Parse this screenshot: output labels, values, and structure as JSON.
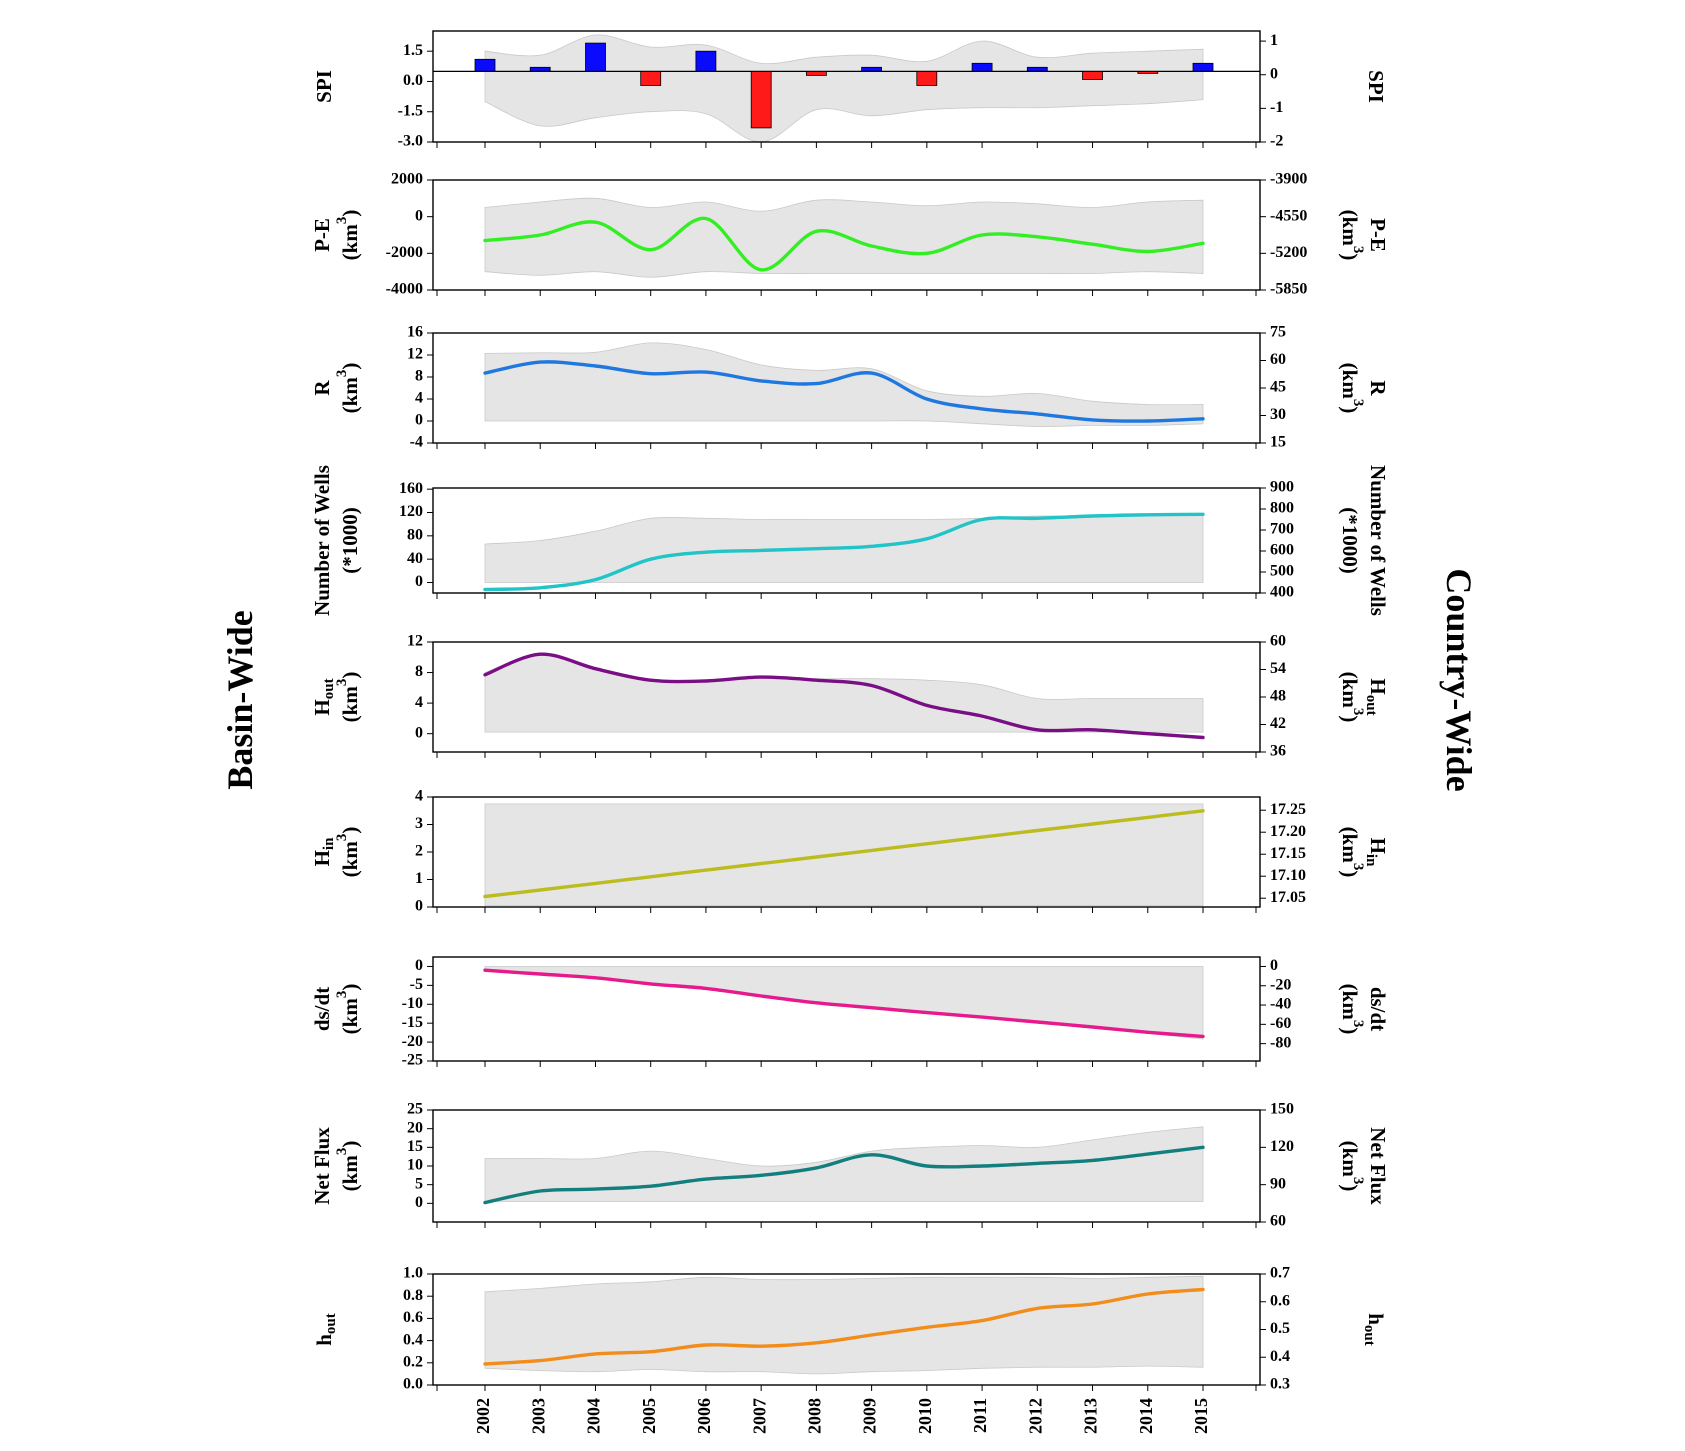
{
  "labels": {
    "left": "Basin-Wide",
    "right": "Country-Wide"
  },
  "years": [
    "2002",
    "2003",
    "2004",
    "2005",
    "2006",
    "2007",
    "2008",
    "2009",
    "2010",
    "2011",
    "2012",
    "2013",
    "2014",
    "2015"
  ],
  "chart_data": [
    {
      "type": "bar",
      "id": "spi",
      "label_left": "SPI",
      "label_right": "SPI",
      "ylim": [
        -3,
        2.5
      ],
      "yticks": [
        -3.0,
        -1.5,
        0.0,
        1.5
      ],
      "ytick_labels": [
        "-3.0",
        "-1.5",
        "0.0",
        "1.5"
      ],
      "ylim_right": [
        -2,
        1.3
      ],
      "yticks_right": [
        -2,
        -1,
        0,
        1
      ],
      "ytick_labels_right": [
        "-2",
        "-1",
        "0",
        "1"
      ],
      "baseline": 0.5,
      "x": [
        "2002",
        "2003",
        "2004",
        "2005",
        "2006",
        "2007",
        "2008",
        "2009",
        "2010",
        "2011",
        "2012",
        "2013",
        "2014",
        "2015"
      ],
      "values": [
        1.1,
        0.7,
        1.9,
        -0.2,
        1.5,
        -2.3,
        0.3,
        0.7,
        -0.2,
        0.9,
        0.7,
        0.1,
        0.4,
        0.9
      ],
      "bar_colors": [
        "#0a0aff",
        "#0a0aff",
        "#0a0aff",
        "#ff1a1a",
        "#0a0aff",
        "#ff1a1a",
        "#ff1a1a",
        "#0a0aff",
        "#ff1a1a",
        "#0a0aff",
        "#0a0aff",
        "#ff1a1a",
        "#ff1a1a",
        "#0a0aff"
      ],
      "band_upper": [
        1.5,
        1.3,
        2.3,
        1.7,
        1.8,
        0.9,
        1.2,
        1.3,
        1.0,
        2.0,
        1.2,
        1.4,
        1.5,
        1.6
      ],
      "band_lower": [
        -1.0,
        -2.2,
        -1.8,
        -1.5,
        -1.6,
        -3.0,
        -1.4,
        -1.7,
        -1.4,
        -1.3,
        -1.3,
        -1.2,
        -1.1,
        -0.9
      ]
    },
    {
      "type": "line",
      "id": "pe",
      "label_left": "P-E",
      "label_right": "P-E",
      "unit": "(km3)",
      "unit_base": "(km",
      "unit_exp": "3",
      "unit_close": ")",
      "color": "#33ee22",
      "ylim": [
        -4000,
        2000
      ],
      "yticks": [
        -4000,
        -2000,
        0,
        2000
      ],
      "ytick_labels": [
        "-4000",
        "-2000",
        "0",
        "2000"
      ],
      "ylim_right": [
        -5850,
        -3900
      ],
      "yticks_right": [
        -5850,
        -5200,
        -4550,
        -3900
      ],
      "ytick_labels_right": [
        "-5850",
        "-5200",
        "-4550",
        "-3900"
      ],
      "x": [
        "2002",
        "2003",
        "2004",
        "2005",
        "2006",
        "2007",
        "2008",
        "2009",
        "2010",
        "2011",
        "2012",
        "2013",
        "2014",
        "2015"
      ],
      "values": [
        -1300,
        -1000,
        -300,
        -1800,
        -100,
        -2900,
        -800,
        -1600,
        -2000,
        -1000,
        -1100,
        -1500,
        -1900,
        -1450
      ],
      "band_upper": [
        500,
        800,
        1000,
        500,
        800,
        300,
        900,
        800,
        600,
        800,
        700,
        500,
        800,
        900
      ],
      "band_lower": [
        -3000,
        -3200,
        -3000,
        -3300,
        -3000,
        -3100,
        -3100,
        -3100,
        -3100,
        -3100,
        -3100,
        -3100,
        -3000,
        -3100
      ]
    },
    {
      "type": "line",
      "id": "r",
      "label_left": "R",
      "label_right": "R",
      "unit": "(km3)",
      "unit_base": "(km",
      "unit_exp": "3",
      "unit_close": ")",
      "color": "#1f78e0",
      "ylim": [
        -4,
        16
      ],
      "yticks": [
        -4,
        0,
        4,
        8,
        12,
        16
      ],
      "ytick_labels": [
        "-4",
        "0",
        "4",
        "8",
        "12",
        "16"
      ],
      "ylim_right": [
        15,
        75
      ],
      "yticks_right": [
        15,
        30,
        45,
        60,
        75
      ],
      "ytick_labels_right": [
        "15",
        "30",
        "45",
        "60",
        "75"
      ],
      "x": [
        "2002",
        "2003",
        "2004",
        "2005",
        "2006",
        "2007",
        "2008",
        "2009",
        "2010",
        "2011",
        "2012",
        "2013",
        "2014",
        "2015"
      ],
      "values": [
        8.7,
        10.7,
        10.0,
        8.6,
        8.9,
        7.3,
        6.8,
        8.7,
        4.0,
        2.2,
        1.3,
        0.2,
        0.0,
        0.4
      ],
      "band_upper": [
        12.3,
        12.4,
        12.5,
        14.2,
        13.0,
        10.2,
        9.2,
        9.5,
        5.5,
        4.5,
        5.0,
        3.6,
        3.0,
        3.0
      ],
      "band_lower": [
        0.0,
        0.0,
        0.0,
        0.0,
        0.0,
        0.0,
        0.0,
        0.0,
        0.0,
        -0.5,
        -1.0,
        -0.8,
        -0.8,
        -0.5
      ]
    },
    {
      "type": "line",
      "id": "wells",
      "label_left_lines": [
        "Number of Wells",
        "(*1000)"
      ],
      "label_right_lines": [
        "Number of Wells",
        "(*1000)"
      ],
      "color": "#22c4c8",
      "ylim": [
        -18,
        162
      ],
      "yticks": [
        0,
        40,
        80,
        120,
        160
      ],
      "ytick_labels": [
        "0",
        "40",
        "80",
        "120",
        "160"
      ],
      "ylim_right": [
        400,
        900
      ],
      "yticks_right": [
        400,
        500,
        600,
        700,
        800,
        900
      ],
      "ytick_labels_right": [
        "400",
        "500",
        "600",
        "700",
        "800",
        "900"
      ],
      "x": [
        "2002",
        "2003",
        "2004",
        "2005",
        "2006",
        "2007",
        "2008",
        "2009",
        "2010",
        "2011",
        "2012",
        "2013",
        "2014",
        "2015"
      ],
      "values": [
        -12,
        -9,
        5,
        40,
        52,
        55,
        58,
        62,
        75,
        108,
        110,
        114,
        116,
        117
      ],
      "band_upper": [
        66,
        72,
        88,
        110,
        110,
        108,
        108,
        108,
        108,
        110,
        114,
        114,
        117,
        118
      ],
      "band_lower": [
        0,
        0,
        0,
        0,
        0,
        0,
        0,
        0,
        0,
        0,
        0,
        0,
        0,
        0
      ]
    },
    {
      "type": "line",
      "id": "hout",
      "label_left": "H",
      "label_left_sub": "out",
      "label_right": "H",
      "label_right_sub": "out",
      "unit": "(km3)",
      "unit_base": "(km",
      "unit_exp": "3",
      "unit_close": ")",
      "color": "#7a0f85",
      "ylim": [
        -2.4,
        12
      ],
      "yticks": [
        0,
        4,
        8,
        12
      ],
      "ytick_labels": [
        "0",
        "4",
        "8",
        "12"
      ],
      "ylim_right": [
        36,
        60
      ],
      "yticks_right": [
        36,
        42,
        48,
        54,
        60
      ],
      "ytick_labels_right": [
        "36",
        "42",
        "48",
        "54",
        "60"
      ],
      "x": [
        "2002",
        "2003",
        "2004",
        "2005",
        "2006",
        "2007",
        "2008",
        "2009",
        "2010",
        "2011",
        "2012",
        "2013",
        "2014",
        "2015"
      ],
      "values": [
        7.7,
        10.4,
        8.5,
        7.0,
        6.9,
        7.4,
        7.0,
        6.3,
        3.7,
        2.3,
        0.5,
        0.5,
        0.0,
        -0.5
      ],
      "band_upper": [
        8.0,
        10.4,
        8.6,
        7.0,
        7.0,
        7.4,
        7.2,
        7.2,
        7.0,
        6.4,
        4.6,
        4.6,
        4.6,
        4.6
      ],
      "band_lower": [
        0.2,
        0.2,
        0.2,
        0.2,
        0.2,
        0.2,
        0.2,
        0.2,
        0.2,
        0.2,
        0.2,
        0.2,
        0.2,
        0.2
      ]
    },
    {
      "type": "line",
      "id": "hin",
      "label_left": "H",
      "label_left_sub": "in",
      "label_right": "H",
      "label_right_sub": "in",
      "unit": "(km3)",
      "unit_base": "(km",
      "unit_exp": "3",
      "unit_close": ")",
      "color": "#bcbc20",
      "ylim": [
        0,
        4
      ],
      "yticks": [
        0,
        1,
        2,
        3,
        4
      ],
      "ytick_labels": [
        "0",
        "1",
        "2",
        "3",
        "4"
      ],
      "ylim_right": [
        17.03,
        17.28
      ],
      "yticks_right": [
        17.05,
        17.1,
        17.15,
        17.2,
        17.25
      ],
      "ytick_labels_right": [
        "17.05",
        "17.10",
        "17.15",
        "17.20",
        "17.25"
      ],
      "x": [
        "2002",
        "2003",
        "2004",
        "2005",
        "2006",
        "2007",
        "2008",
        "2009",
        "2010",
        "2011",
        "2012",
        "2013",
        "2014",
        "2015"
      ],
      "values": [
        0.38,
        0.62,
        0.86,
        1.1,
        1.34,
        1.58,
        1.82,
        2.06,
        2.3,
        2.54,
        2.78,
        3.02,
        3.26,
        3.5
      ],
      "band_upper": [
        3.75,
        3.75,
        3.75,
        3.75,
        3.75,
        3.75,
        3.75,
        3.75,
        3.75,
        3.75,
        3.75,
        3.75,
        3.75,
        3.75
      ],
      "band_lower": [
        0.05,
        0.05,
        0.05,
        0.05,
        0.05,
        0.05,
        0.05,
        0.05,
        0.05,
        0.05,
        0.05,
        0.05,
        0.05,
        0.05
      ]
    },
    {
      "type": "line",
      "id": "dsdt",
      "label_left": "ds/dt",
      "label_right": "ds/dt",
      "unit": "(km3)",
      "unit_base": "(km",
      "unit_exp": "3",
      "unit_close": ")",
      "color": "#e61a8c",
      "ylim": [
        -25,
        2.5
      ],
      "yticks": [
        -25,
        -20,
        -15,
        -10,
        -5,
        0
      ],
      "ytick_labels": [
        "-25",
        "-20",
        "-15",
        "-10",
        "-5",
        "0"
      ],
      "ylim_right": [
        -98,
        9.8
      ],
      "yticks_right": [
        -80,
        -60,
        -40,
        -20,
        0
      ],
      "ytick_labels_right": [
        "-80",
        "-60",
        "-40",
        "-20",
        "0"
      ],
      "x": [
        "2002",
        "2003",
        "2004",
        "2005",
        "2006",
        "2007",
        "2008",
        "2009",
        "2010",
        "2011",
        "2012",
        "2013",
        "2014",
        "2015"
      ],
      "values": [
        -1.0,
        -2.0,
        -3.0,
        -4.6,
        -5.8,
        -7.8,
        -9.6,
        -10.9,
        -12.2,
        -13.4,
        -14.7,
        -16.0,
        -17.4,
        -18.5
      ],
      "band_upper": [
        0,
        0,
        0,
        0,
        0,
        0,
        0,
        0,
        0,
        0,
        0,
        0,
        0,
        0
      ],
      "band_lower": [
        -1.2,
        -2.2,
        -3.3,
        -4.9,
        -6.0,
        -8.0,
        -9.8,
        -11.1,
        -12.4,
        -13.6,
        -14.9,
        -16.3,
        -17.7,
        -19.2
      ]
    },
    {
      "type": "line",
      "id": "netflux",
      "label_left": "Net Flux",
      "label_right": "Net Flux",
      "unit": "(km3)",
      "unit_base": "(km",
      "unit_exp": "3",
      "unit_close": ")",
      "color": "#127e7e",
      "ylim": [
        -5,
        25
      ],
      "yticks": [
        0,
        5,
        10,
        15,
        20,
        25
      ],
      "ytick_labels": [
        "0",
        "5",
        "10",
        "15",
        "20",
        "25"
      ],
      "ylim_right": [
        60,
        150
      ],
      "yticks_right": [
        60,
        90,
        120,
        150
      ],
      "ytick_labels_right": [
        "60",
        "90",
        "120",
        "150"
      ],
      "x": [
        "2002",
        "2003",
        "2004",
        "2005",
        "2006",
        "2007",
        "2008",
        "2009",
        "2010",
        "2011",
        "2012",
        "2013",
        "2014",
        "2015"
      ],
      "values": [
        0.2,
        3.3,
        3.8,
        4.6,
        6.5,
        7.5,
        9.5,
        13.0,
        10.0,
        10.0,
        10.7,
        11.5,
        13.2,
        15.0
      ],
      "band_upper": [
        12.0,
        12.0,
        12.0,
        14.0,
        12.0,
        10.0,
        11.0,
        14.0,
        15.0,
        15.5,
        15.0,
        17.0,
        19.0,
        20.5
      ],
      "band_lower": [
        0.5,
        0.5,
        0.5,
        0.5,
        0.5,
        0.5,
        0.5,
        0.5,
        0.5,
        0.5,
        0.5,
        0.5,
        0.5,
        0.5
      ]
    },
    {
      "type": "line",
      "id": "hout_small",
      "label_left": "h",
      "label_left_sub": "out",
      "label_right": "h",
      "label_right_sub": "out",
      "color": "#f28c1a",
      "ylim": [
        0,
        1.0
      ],
      "yticks": [
        0.0,
        0.2,
        0.4,
        0.6,
        0.8,
        1.0
      ],
      "ytick_labels": [
        "0.0",
        "0.2",
        "0.4",
        "0.6",
        "0.8",
        "1.0"
      ],
      "ylim_right": [
        0.3,
        0.7
      ],
      "yticks_right": [
        0.3,
        0.4,
        0.5,
        0.6,
        0.7
      ],
      "ytick_labels_right": [
        "0.3",
        "0.4",
        "0.5",
        "0.6",
        "0.7"
      ],
      "x": [
        "2002",
        "2003",
        "2004",
        "2005",
        "2006",
        "2007",
        "2008",
        "2009",
        "2010",
        "2011",
        "2012",
        "2013",
        "2014",
        "2015"
      ],
      "values": [
        0.19,
        0.22,
        0.28,
        0.3,
        0.36,
        0.35,
        0.38,
        0.45,
        0.52,
        0.58,
        0.69,
        0.73,
        0.82,
        0.86
      ],
      "band_upper": [
        0.84,
        0.87,
        0.91,
        0.93,
        0.97,
        0.95,
        0.95,
        0.96,
        0.97,
        0.97,
        0.97,
        0.96,
        0.97,
        0.98
      ],
      "band_lower": [
        0.15,
        0.13,
        0.12,
        0.14,
        0.12,
        0.12,
        0.1,
        0.12,
        0.13,
        0.15,
        0.16,
        0.16,
        0.17,
        0.16
      ]
    }
  ]
}
